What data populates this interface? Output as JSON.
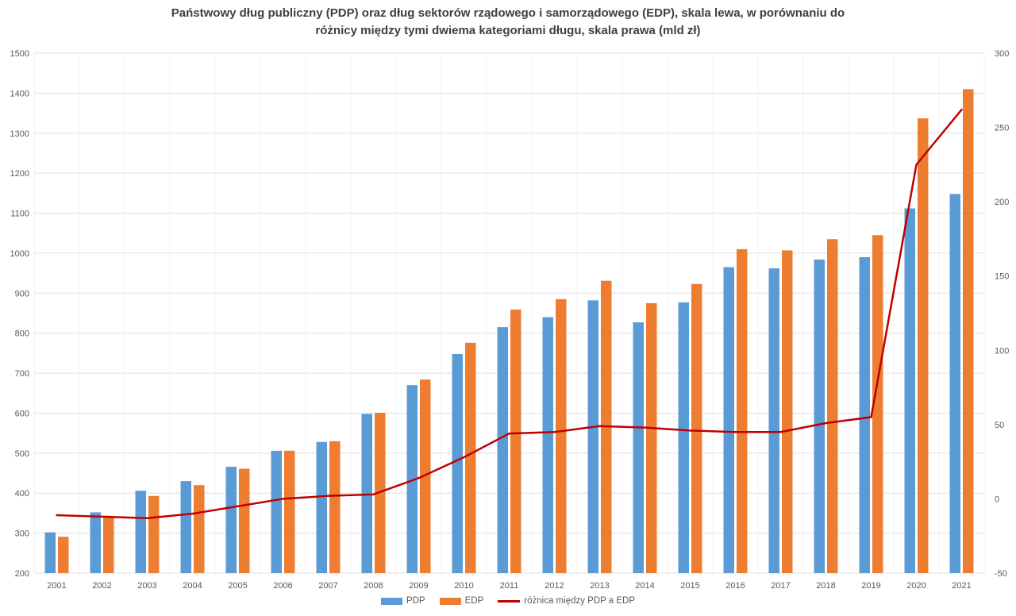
{
  "title_lines": [
    "Państwowy dług publiczny (PDP) oraz dług sektorów rządowego i samorządowego (EDP), skala lewa, w porównaniu do",
    "różnicy między tymi dwiema kategoriami długu, skala prawa (mld zł)"
  ],
  "colors": {
    "pdp": "#5B9BD5",
    "edp": "#ED7D31",
    "line": "#C00000",
    "grid_h": "#E0E0E0",
    "grid_v": "#F0F0F0",
    "axis_text": "#595959",
    "title_text": "#3F3F3F",
    "background": "#FFFFFF"
  },
  "chart_data": {
    "type": "bar",
    "title": "Państwowy dług publiczny (PDP) oraz dług sektorów rządowego i samorządowego (EDP), skala lewa, w porównaniu do różnicy między tymi dwiema kategoriami długu, skala prawa (mld zł)",
    "unit": "mld zł",
    "grid": true,
    "legend_position": "bottom",
    "categories": [
      2001,
      2002,
      2003,
      2004,
      2005,
      2006,
      2007,
      2008,
      2009,
      2010,
      2011,
      2012,
      2013,
      2014,
      2015,
      2016,
      2017,
      2018,
      2019,
      2020,
      2021
    ],
    "series": [
      {
        "name": "PDP",
        "type": "bar",
        "axis": "left",
        "values": [
          302,
          352,
          406,
          430,
          466,
          506,
          528,
          598,
          670,
          748,
          815,
          840,
          882,
          827,
          877,
          965,
          962,
          984,
          990,
          1112,
          1148
        ]
      },
      {
        "name": "EDP",
        "type": "bar",
        "axis": "left",
        "values": [
          291,
          340,
          393,
          420,
          461,
          506,
          530,
          601,
          684,
          776,
          859,
          885,
          931,
          875,
          923,
          1010,
          1007,
          1035,
          1045,
          1337,
          1410
        ]
      },
      {
        "name": "różnica między PDP a EDP",
        "type": "line",
        "axis": "right",
        "values": [
          -11,
          -12,
          -13,
          -10,
          -5,
          0,
          2,
          3,
          14,
          28,
          44,
          45,
          49,
          48,
          46,
          45,
          45,
          51,
          55,
          225,
          262
        ]
      }
    ],
    "left_axis": {
      "min": 200,
      "max": 1500,
      "step": 100,
      "ticks": [
        200,
        300,
        400,
        500,
        600,
        700,
        800,
        900,
        1000,
        1100,
        1200,
        1300,
        1400,
        1500
      ]
    },
    "right_axis": {
      "min": -50,
      "max": 300,
      "step": 50,
      "ticks": [
        -50,
        0,
        50,
        100,
        150,
        200,
        250,
        300
      ]
    }
  }
}
